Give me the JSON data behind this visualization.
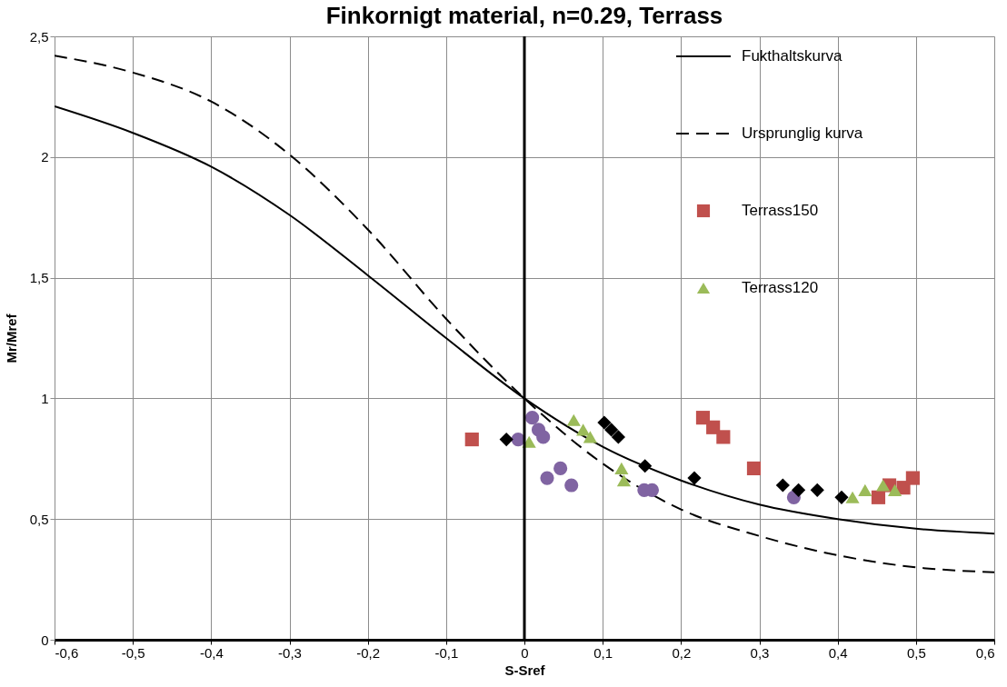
{
  "chart_data": {
    "type": "scatter",
    "title": "Finkornigt material, n=0.29, Terrass",
    "xlabel": "S-Sref",
    "ylabel": "Mr/Mref",
    "xlim": [
      -0.6,
      0.6
    ],
    "ylim": [
      0,
      2.5
    ],
    "xticks": [
      {
        "value": -0.6,
        "label": "-0,6"
      },
      {
        "value": -0.5,
        "label": "-0,5"
      },
      {
        "value": -0.4,
        "label": "-0,4"
      },
      {
        "value": -0.3,
        "label": "-0,3"
      },
      {
        "value": -0.2,
        "label": "-0,2"
      },
      {
        "value": -0.1,
        "label": "-0,1"
      },
      0,
      {
        "value": 0.1,
        "label": "0,1"
      },
      {
        "value": 0.2,
        "label": "0,2"
      },
      {
        "value": 0.3,
        "label": "0,3"
      },
      {
        "value": 0.4,
        "label": "0,4"
      },
      {
        "value": 0.5,
        "label": "0,5"
      },
      {
        "value": 0.6,
        "label": "0,6"
      }
    ],
    "yticks": [
      0,
      {
        "value": 0.5,
        "label": "0,5"
      },
      1,
      {
        "value": 1.5,
        "label": "1,5"
      },
      2,
      {
        "value": 2.5,
        "label": "2,5"
      }
    ],
    "grid": true,
    "legend": "top right",
    "ref_lines": [
      {
        "axis": "x",
        "value": 0,
        "color": "#000000"
      }
    ],
    "series": [
      {
        "name": "Fukthaltskurva",
        "type": "line",
        "line_style": "solid",
        "marker": "none",
        "color": "#000000",
        "x": [
          -0.6,
          -0.5,
          -0.4,
          -0.3,
          -0.2,
          -0.1,
          0,
          0.1,
          0.2,
          0.3,
          0.4,
          0.5,
          0.6
        ],
        "values": [
          2.21,
          2.1,
          1.96,
          1.76,
          1.51,
          1.25,
          1.0,
          0.8,
          0.66,
          0.56,
          0.5,
          0.46,
          0.44
        ]
      },
      {
        "name": "Ursprunglig kurva",
        "type": "line",
        "line_style": "dashed",
        "marker": "none",
        "color": "#000000",
        "x": [
          -0.6,
          -0.5,
          -0.4,
          -0.3,
          -0.2,
          -0.1,
          0,
          0.1,
          0.2,
          0.3,
          0.4,
          0.5,
          0.6
        ],
        "values": [
          2.42,
          2.35,
          2.23,
          2.01,
          1.7,
          1.33,
          1.0,
          0.73,
          0.54,
          0.43,
          0.35,
          0.3,
          0.28
        ]
      },
      {
        "name": "Terrass150",
        "marker": "square",
        "color": "#c0504d",
        "x": [
          -0.067,
          0.228,
          0.241,
          0.254,
          0.293,
          0.452,
          0.466,
          0.484,
          0.496
        ],
        "values": [
          0.83,
          0.92,
          0.88,
          0.84,
          0.71,
          0.59,
          0.64,
          0.63,
          0.67
        ]
      },
      {
        "name": "Terrass120",
        "marker": "triangle",
        "color": "#9bbb59",
        "x": [
          0.006,
          0.063,
          0.075,
          0.084,
          0.124,
          0.127,
          0.419,
          0.435,
          0.458,
          0.473
        ],
        "values": [
          0.82,
          0.91,
          0.87,
          0.84,
          0.71,
          0.66,
          0.59,
          0.62,
          0.64,
          0.62
        ]
      },
      {
        "marker": "circle",
        "color": "#8064a2",
        "x": [
          -0.008,
          0.01,
          0.018,
          0.024,
          0.029,
          0.046,
          0.06,
          0.153,
          0.163,
          0.344
        ],
        "values": [
          0.83,
          0.92,
          0.87,
          0.84,
          0.67,
          0.71,
          0.64,
          0.62,
          0.62,
          0.59
        ]
      },
      {
        "marker": "diamond",
        "color": "#000000",
        "x": [
          -0.023,
          0.102,
          0.111,
          0.12,
          0.154,
          0.217,
          0.33,
          0.35,
          0.374,
          0.405
        ],
        "values": [
          0.83,
          0.9,
          0.87,
          0.84,
          0.72,
          0.67,
          0.64,
          0.62,
          0.62,
          0.59
        ]
      }
    ]
  }
}
